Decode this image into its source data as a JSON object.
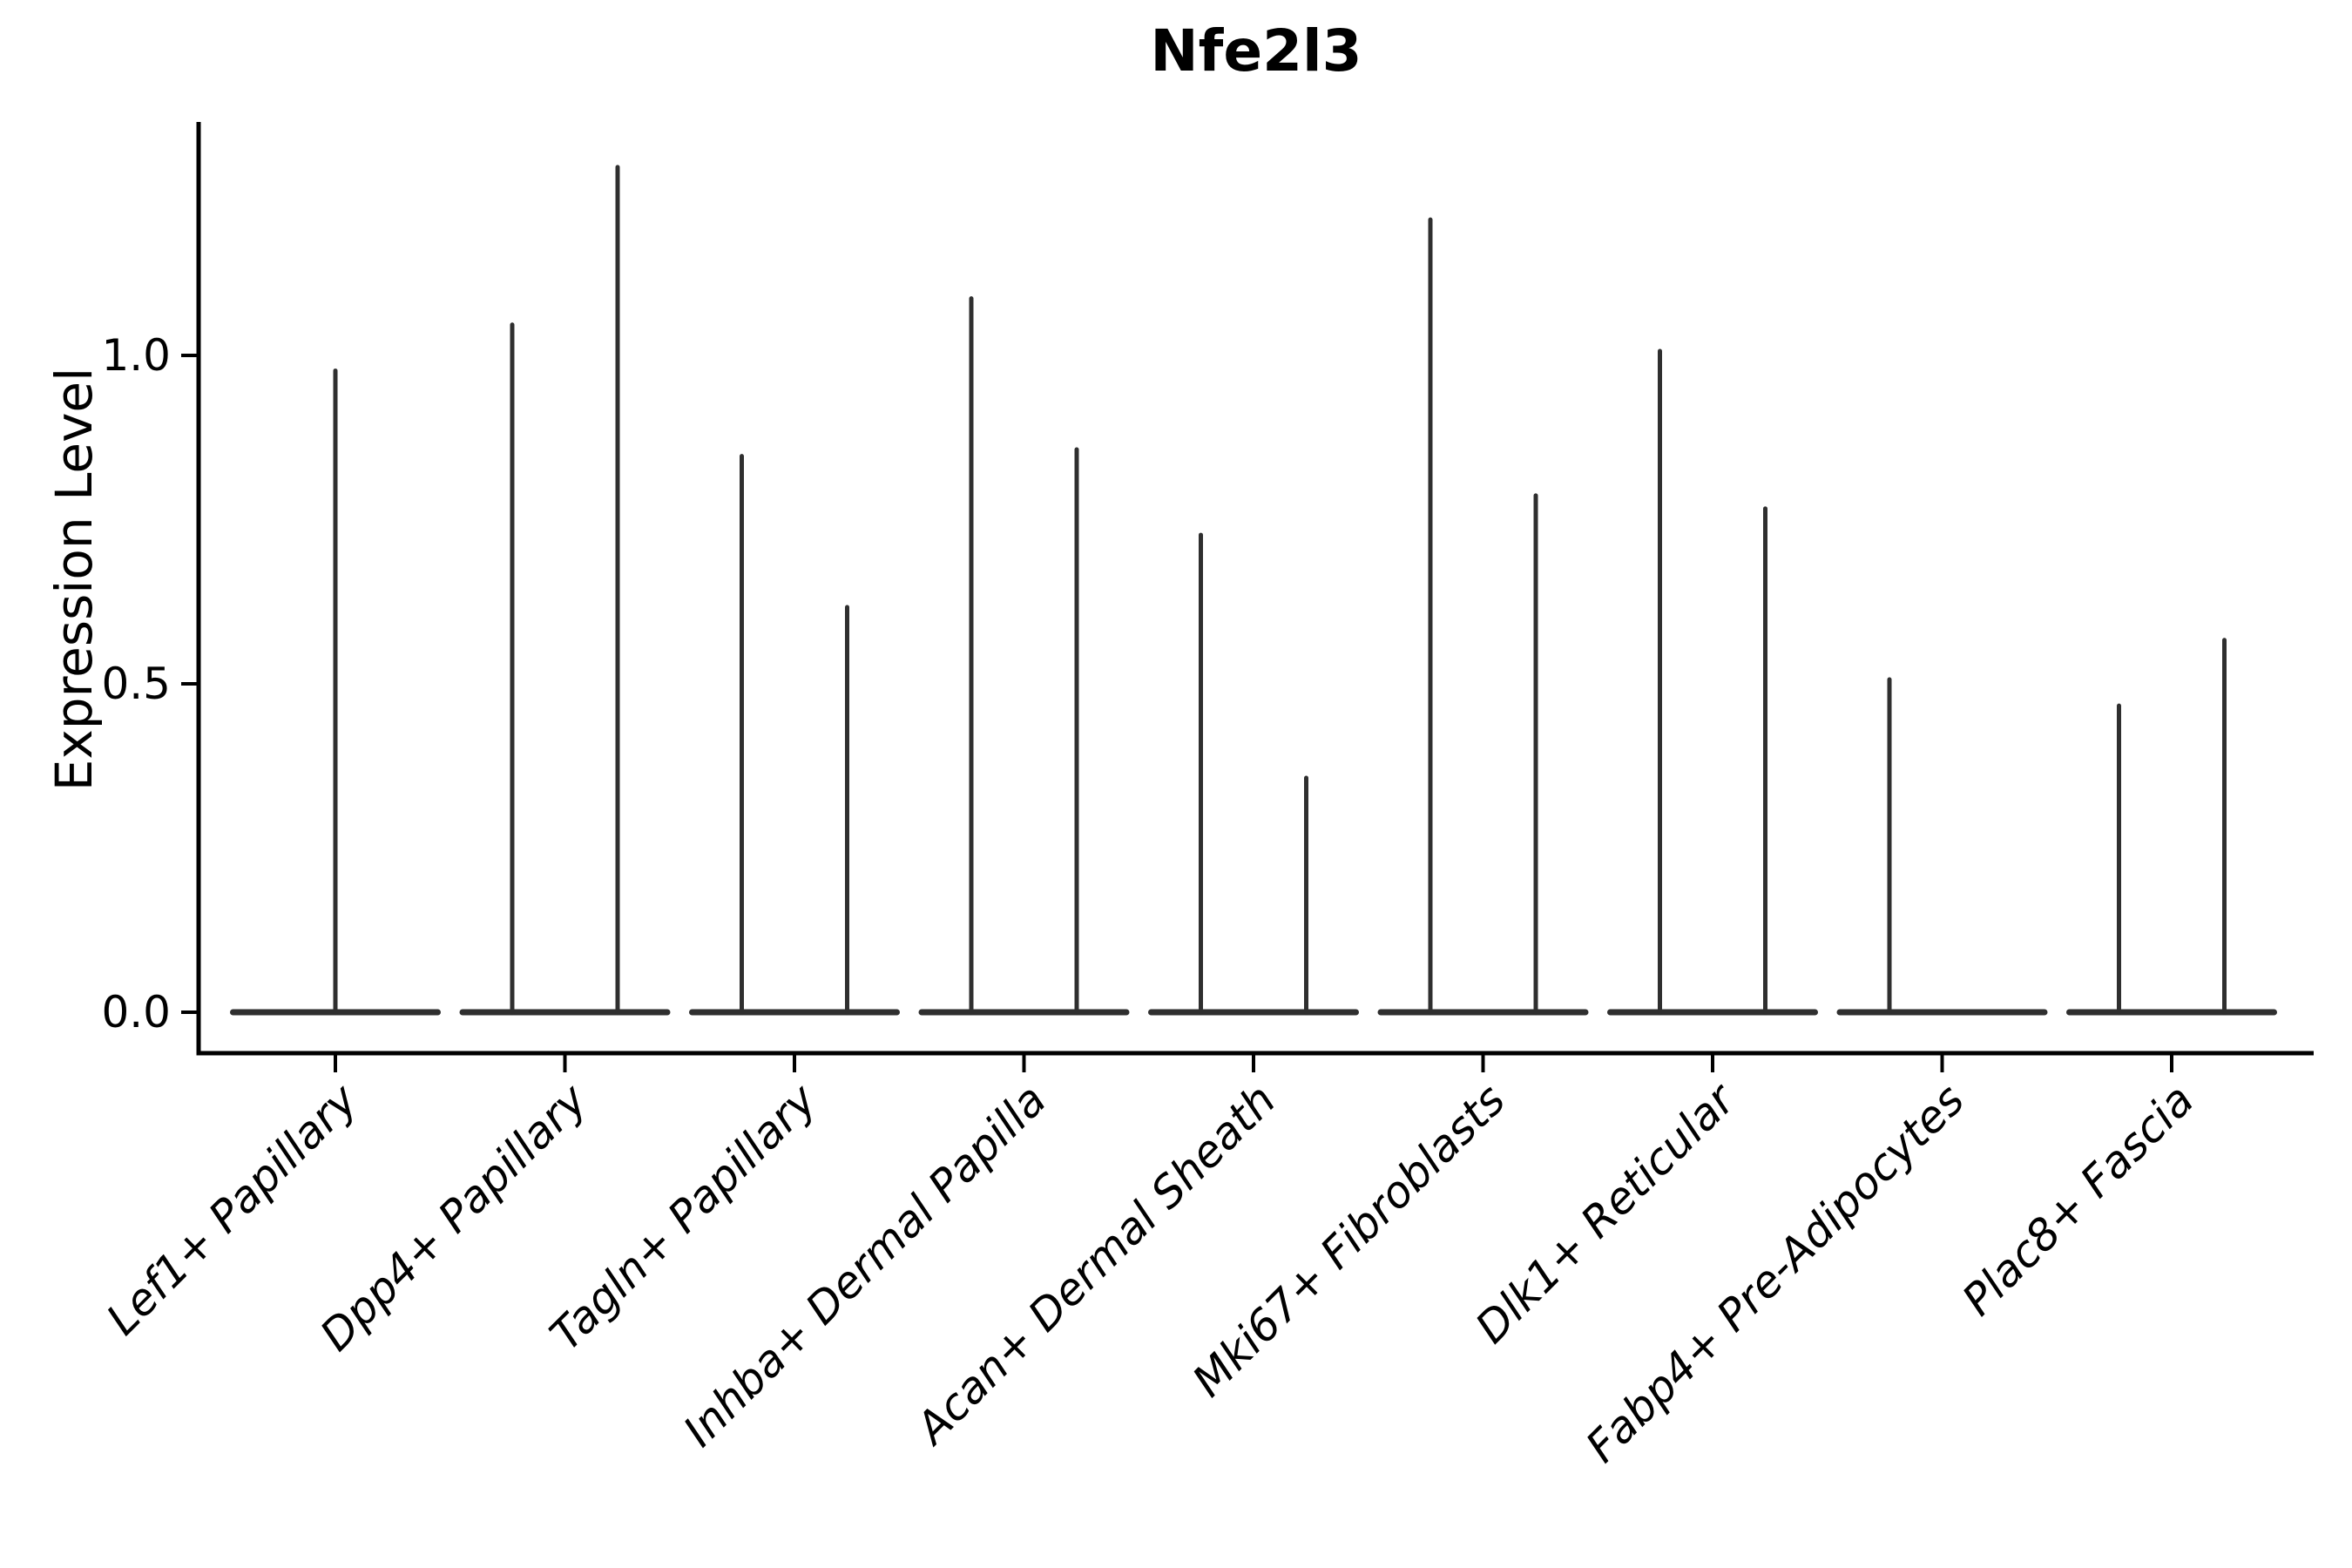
{
  "chart_data": {
    "type": "violin",
    "title": "Nfe2l3",
    "ylabel": "Expression Level",
    "xlabel": "",
    "grid": false,
    "legend_position": "none",
    "background_color": "#ffffff",
    "axis_color": "#000000",
    "violin_color": "#2f2f2f",
    "ylim": [
      -0.06,
      1.36
    ],
    "yticks": [
      {
        "label": "0.0",
        "value": 0.0
      },
      {
        "label": "0.5",
        "value": 0.5
      },
      {
        "label": "1.0",
        "value": 1.0
      }
    ],
    "categories": [
      {
        "label": "Lef1+ Papillary",
        "violins": [
          {
            "position": "center",
            "peak": 0.98
          }
        ]
      },
      {
        "label": "Dpp4+ Papillary",
        "violins": [
          {
            "position": "left",
            "peak": 1.05
          },
          {
            "position": "right",
            "peak": 1.29
          }
        ]
      },
      {
        "label": "Tagln+ Papillary",
        "violins": [
          {
            "position": "left",
            "peak": 0.85
          },
          {
            "position": "right",
            "peak": 0.62
          }
        ]
      },
      {
        "label": "Inhba+ Dermal Papilla",
        "violins": [
          {
            "position": "left",
            "peak": 1.09
          },
          {
            "position": "right",
            "peak": 0.86
          }
        ]
      },
      {
        "label": "Acan+ Dermal Sheath",
        "violins": [
          {
            "position": "left",
            "peak": 0.73
          },
          {
            "position": "right",
            "peak": 0.36
          }
        ]
      },
      {
        "label": "Mki67+ Fibroblasts",
        "violins": [
          {
            "position": "left",
            "peak": 1.21
          },
          {
            "position": "right",
            "peak": 0.79
          }
        ]
      },
      {
        "label": "Dlk1+ Reticular",
        "violins": [
          {
            "position": "left",
            "peak": 1.01
          },
          {
            "position": "right",
            "peak": 0.77
          }
        ]
      },
      {
        "label": "Fabp4+ Pre-Adipocytes",
        "violins": [
          {
            "position": "left",
            "peak": 0.51
          },
          {
            "position": "right",
            "peak": 0.0
          }
        ]
      },
      {
        "label": "Plac8+ Fascia",
        "violins": [
          {
            "position": "left",
            "peak": 0.47
          },
          {
            "position": "right",
            "peak": 0.57
          }
        ]
      }
    ]
  }
}
